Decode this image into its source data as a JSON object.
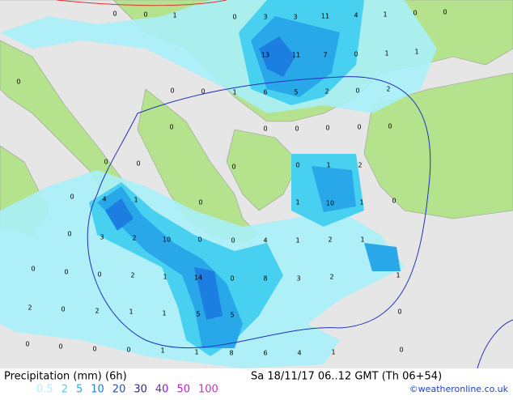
{
  "map": {
    "labels": [
      [
        0,
        0,
        1,
        0,
        3,
        3,
        11,
        4,
        1,
        0,
        0
      ],
      [
        13,
        11,
        7,
        0,
        1,
        1
      ],
      [
        0,
        0,
        0,
        1,
        6,
        5,
        2,
        0,
        2
      ],
      [
        0,
        0,
        0,
        0,
        0,
        0
      ],
      [
        0,
        0,
        0,
        0,
        1,
        2
      ],
      [
        0,
        4,
        1,
        0,
        1,
        10,
        1,
        0
      ],
      [
        0,
        3,
        2,
        10,
        0,
        0,
        4,
        1,
        2,
        1
      ],
      [
        0,
        0,
        0,
        2,
        1,
        14,
        0,
        8,
        3,
        2,
        1
      ],
      [
        2,
        0,
        2,
        1,
        1,
        5,
        5,
        0
      ],
      [
        0,
        0,
        0,
        0,
        1,
        1,
        8,
        6,
        4,
        1,
        0
      ]
    ]
  },
  "footer": {
    "title": "Precipitation (mm) (6h)",
    "date": "Sa 18/11/17 06..12 GMT (Th 06+54)",
    "credit": "©weatheronline.co.uk",
    "legend": [
      {
        "value": 0.5,
        "color": "#a8f0f8"
      },
      {
        "value": 2,
        "color": "#48d0f0"
      },
      {
        "value": 5,
        "color": "#28a8e8"
      },
      {
        "value": 10,
        "color": "#1c7ee0"
      },
      {
        "value": 20,
        "color": "#1c4cc8"
      },
      {
        "value": 30,
        "color": "#3020a8"
      },
      {
        "value": 40,
        "color": "#8020c0"
      },
      {
        "value": 50,
        "color": "#c020c8"
      },
      {
        "value": 100,
        "color": "#e020e0"
      }
    ]
  }
}
